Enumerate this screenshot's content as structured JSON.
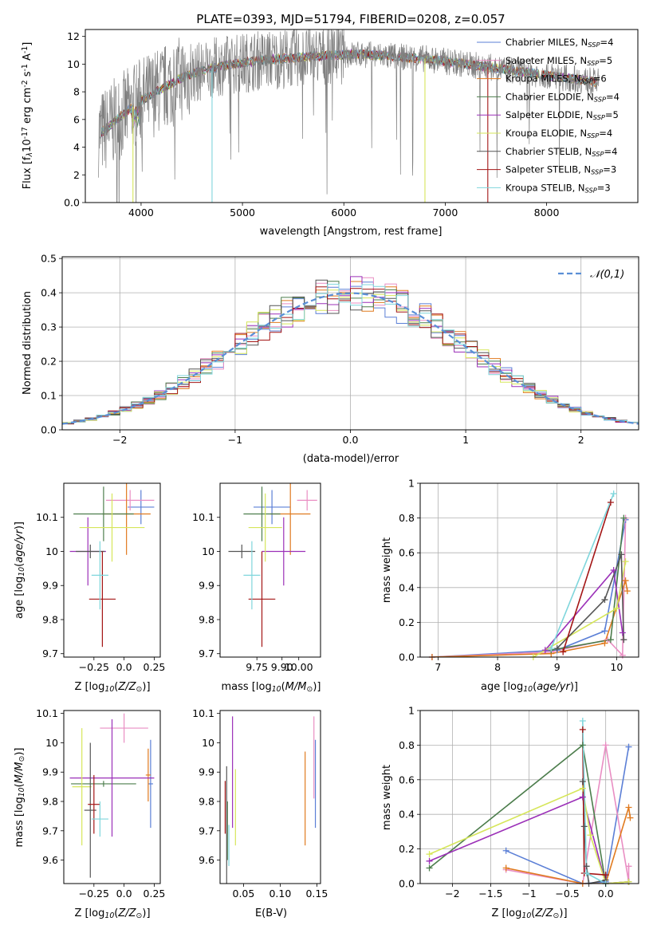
{
  "figure_title": "PLATE=0393, MJD=51794, FIBERID=0208, z=0.057",
  "colors": {
    "Chabrier MILES": "#5b7fd6",
    "Salpeter MILES": "#e98ec3",
    "Kroupa MILES": "#e07a1f",
    "Chabrier ELODIE": "#4c7d4c",
    "Salpeter ELODIE": "#9b30b8",
    "Kroupa ELODIE": "#d6e65a",
    "Chabrier STELIB": "#555555",
    "Salpeter STELIB": "#a31515",
    "Kroupa STELIB": "#7fd6dc",
    "data": "#808080",
    "normal": "#5a8fd6"
  },
  "chart_data": [
    {
      "id": "spectrum",
      "type": "line",
      "title": "PLATE=0393, MJD=51794, FIBERID=0208, z=0.057",
      "xlabel": "wavelength [Angstrom, rest frame]",
      "ylabel": "Flux [f$_\\lambda$10$^{-17}$ erg cm$^{-2}$ s$^{-1}$ A$^{-1}$]",
      "xlim": [
        3450,
        8900
      ],
      "ylim": [
        0,
        12.5
      ],
      "xticks": [
        4000,
        5000,
        6000,
        7000,
        8000
      ],
      "yticks": [
        0,
        2,
        4,
        6,
        8,
        10,
        12
      ],
      "legend_position": "top-right",
      "continuum": {
        "x": [
          3600,
          3700,
          3800,
          3900,
          4000,
          4100,
          4200,
          4300,
          4400,
          4500,
          4600,
          4800,
          5000,
          5200,
          5400,
          5600,
          5800,
          6000,
          6200,
          6400,
          6600,
          6800,
          7000,
          7200,
          7400,
          7600,
          7800,
          8000,
          8200,
          8400,
          8500
        ],
        "y": [
          5.0,
          5.6,
          6.2,
          6.8,
          7.4,
          7.8,
          8.2,
          8.6,
          9.0,
          9.3,
          9.5,
          9.9,
          10.1,
          10.3,
          10.4,
          10.5,
          10.6,
          10.7,
          10.7,
          10.6,
          10.5,
          10.4,
          10.2,
          10.0,
          9.8,
          9.6,
          9.4,
          9.2,
          9.0,
          8.8,
          8.7
        ]
      },
      "series": [
        {
          "name": "Chabrier MILES, N$_{SSP}$=4"
        },
        {
          "name": "Salpeter MILES, N$_{SSP}$=5"
        },
        {
          "name": "Kroupa MILES, N$_{SSP}$=6"
        },
        {
          "name": "Chabrier ELODIE, N$_{SSP}$=4"
        },
        {
          "name": "Salpeter ELODIE, N$_{SSP}$=5"
        },
        {
          "name": "Kroupa ELODIE, N$_{SSP}$=4"
        },
        {
          "name": "Chabrier STELIB, N$_{SSP}$=4"
        },
        {
          "name": "Salpeter STELIB, N$_{SSP}$=3"
        },
        {
          "name": "Kroupa STELIB, N$_{SSP}$=3"
        }
      ],
      "model_drops": [
        {
          "model": "Kroupa STELIB",
          "x": 4700
        },
        {
          "model": "Kroupa ELODIE",
          "x": 3920
        },
        {
          "model": "Kroupa ELODIE",
          "x": 6800
        },
        {
          "model": "Salpeter STELIB",
          "x": 7420
        }
      ]
    },
    {
      "id": "residuals",
      "type": "line",
      "xlabel": "(data-model)/error",
      "ylabel": "Normed distribution",
      "xlim": [
        -2.5,
        2.5
      ],
      "ylim": [
        0,
        0.505
      ],
      "xticks": [
        -2,
        -1,
        0,
        1,
        2
      ],
      "yticks": [
        0.0,
        0.1,
        0.2,
        0.3,
        0.4,
        0.5
      ],
      "grid": true,
      "legend_position": "top-right",
      "normal_label": "$\\mathcal{N}(0,1)$",
      "bin_width": 0.1
    },
    {
      "id": "age-vs-Z",
      "type": "scatter",
      "xlabel": "Z [log$_{10}$($Z/Z_\\odot$)]",
      "ylabel": "age  [log$_{10}$($age/yr$)]",
      "xlim": [
        -0.5,
        0.3
      ],
      "ylim": [
        9.69,
        10.2
      ],
      "xticks": [
        -0.25,
        0.0,
        0.25
      ],
      "yticks": [
        9.7,
        9.8,
        9.9,
        10.0,
        10.1
      ],
      "points": [
        {
          "model": "Chabrier MILES",
          "x": 0.14,
          "y": 10.13,
          "xerr": 0.11,
          "yerr": 0.05
        },
        {
          "model": "Salpeter MILES",
          "x": 0.05,
          "y": 10.15,
          "xerr": 0.2,
          "yerr": 0.03
        },
        {
          "model": "Kroupa MILES",
          "x": 0.02,
          "y": 10.11,
          "xerr": 0.2,
          "yerr": 0.12
        },
        {
          "model": "Chabrier ELODIE",
          "x": -0.17,
          "y": 10.11,
          "xerr": 0.25,
          "yerr": 0.08
        },
        {
          "model": "Salpeter ELODIE",
          "x": -0.3,
          "y": 10.0,
          "xerr": 0.15,
          "yerr": 0.1
        },
        {
          "model": "Kroupa ELODIE",
          "x": -0.1,
          "y": 10.07,
          "xerr": 0.27,
          "yerr": 0.1
        },
        {
          "model": "Chabrier STELIB",
          "x": -0.28,
          "y": 10.0,
          "xerr": 0.12,
          "yerr": 0.02
        },
        {
          "model": "Salpeter STELIB",
          "x": -0.18,
          "y": 9.86,
          "xerr": 0.11,
          "yerr": 0.14
        },
        {
          "model": "Kroupa STELIB",
          "x": -0.2,
          "y": 9.93,
          "xerr": 0.07,
          "yerr": 0.1
        }
      ]
    },
    {
      "id": "age-vs-mass",
      "type": "scatter",
      "xlabel": "mass [log$_{10}$($M/M_\\odot$)]",
      "ylabel": "",
      "xlim": [
        9.53,
        10.13
      ],
      "ylim": [
        9.69,
        10.2
      ],
      "xticks": [
        9.75,
        9.9,
        10.0
      ],
      "xticklabels": [
        "9.75",
        "9.90",
        "10.00"
      ],
      "yticks": [
        9.7,
        9.8,
        9.9,
        10.0,
        10.1
      ],
      "points": [
        {
          "model": "Chabrier MILES",
          "x": 9.84,
          "y": 10.13,
          "xerr": 0.11,
          "yerr": 0.05
        },
        {
          "model": "Salpeter MILES",
          "x": 10.05,
          "y": 10.15,
          "xerr": 0.06,
          "yerr": 0.03
        },
        {
          "model": "Kroupa MILES",
          "x": 9.95,
          "y": 10.11,
          "xerr": 0.12,
          "yerr": 0.12
        },
        {
          "model": "Chabrier ELODIE",
          "x": 9.78,
          "y": 10.11,
          "xerr": 0.11,
          "yerr": 0.08
        },
        {
          "model": "Salpeter ELODIE",
          "x": 9.91,
          "y": 10.0,
          "xerr": 0.13,
          "yerr": 0.1
        },
        {
          "model": "Kroupa ELODIE",
          "x": 9.8,
          "y": 10.07,
          "xerr": 0.1,
          "yerr": 0.1
        },
        {
          "model": "Chabrier STELIB",
          "x": 9.66,
          "y": 10.0,
          "xerr": 0.08,
          "yerr": 0.02
        },
        {
          "model": "Salpeter STELIB",
          "x": 9.78,
          "y": 9.86,
          "xerr": 0.08,
          "yerr": 0.14
        },
        {
          "model": "Kroupa STELIB",
          "x": 9.72,
          "y": 9.93,
          "xerr": 0.05,
          "yerr": 0.1
        }
      ]
    },
    {
      "id": "massweight-vs-age",
      "type": "line",
      "xlabel": "age  [log$_{10}$($age/yr$)]",
      "ylabel": "mass weight",
      "xlim": [
        6.7,
        10.37
      ],
      "ylim": [
        0,
        1.0
      ],
      "xticks": [
        7,
        8,
        9,
        10
      ],
      "yticks": [
        0.0,
        0.2,
        0.4,
        0.6,
        0.8,
        1.0
      ],
      "grid": true,
      "series": [
        {
          "model": "Chabrier MILES",
          "x": [
            6.9,
            9.0,
            9.8,
            10.15
          ],
          "y": [
            0.0,
            0.04,
            0.15,
            0.79
          ]
        },
        {
          "model": "Salpeter MILES",
          "x": [
            6.9,
            8.9,
            9.85,
            10.1,
            10.15
          ],
          "y": [
            0.0,
            0.03,
            0.1,
            0.01,
            0.8
          ]
        },
        {
          "model": "Kroupa MILES",
          "x": [
            6.9,
            8.9,
            9.8,
            10.15,
            10.18
          ],
          "y": [
            0.0,
            0.02,
            0.08,
            0.44,
            0.38
          ]
        },
        {
          "model": "Chabrier ELODIE",
          "x": [
            8.9,
            9.9,
            10.12
          ],
          "y": [
            0.04,
            0.1,
            0.8
          ]
        },
        {
          "model": "Salpeter ELODIE",
          "x": [
            8.8,
            9.95,
            10.1
          ],
          "y": [
            0.04,
            0.5,
            0.14
          ]
        },
        {
          "model": "Kroupa ELODIE",
          "x": [
            8.6,
            10.0,
            10.15
          ],
          "y": [
            0.0,
            0.28,
            0.55
          ]
        },
        {
          "model": "Chabrier STELIB",
          "x": [
            9.0,
            9.8,
            10.08,
            10.12
          ],
          "y": [
            0.05,
            0.33,
            0.59,
            0.1
          ]
        },
        {
          "model": "Salpeter STELIB",
          "x": [
            9.1,
            9.9
          ],
          "y": [
            0.03,
            0.89
          ]
        },
        {
          "model": "Kroupa STELIB",
          "x": [
            8.9,
            9.95
          ],
          "y": [
            0.05,
            0.94
          ]
        }
      ]
    },
    {
      "id": "mass-vs-Z",
      "type": "scatter",
      "xlabel": "Z [log$_{10}$($Z/Z_\\odot$)]",
      "ylabel": "mass [log$_{10}$($M/M_\\odot$)]",
      "xlim": [
        -0.5,
        0.3
      ],
      "ylim": [
        9.52,
        10.11
      ],
      "xticks": [
        -0.25,
        0.0,
        0.25
      ],
      "yticks": [
        9.6,
        9.7,
        9.8,
        9.9,
        10.0,
        10.1
      ],
      "points": [
        {
          "model": "Chabrier MILES",
          "x": 0.22,
          "y": 9.86,
          "xerr": 0.02,
          "yerr": 0.15
        },
        {
          "model": "Salpeter MILES",
          "x": 0.0,
          "y": 10.05,
          "xerr": 0.2,
          "yerr": 0.05
        },
        {
          "model": "Kroupa MILES",
          "x": 0.2,
          "y": 9.89,
          "xerr": 0.02,
          "yerr": 0.09
        },
        {
          "model": "Chabrier ELODIE",
          "x": -0.17,
          "y": 9.86,
          "xerr": 0.27,
          "yerr": 0.01
        },
        {
          "model": "Salpeter ELODIE",
          "x": -0.1,
          "y": 9.88,
          "xerr": 0.35,
          "yerr": 0.2
        },
        {
          "model": "Kroupa ELODIE",
          "x": -0.35,
          "y": 9.85,
          "xerr": 0.08,
          "yerr": 0.2
        },
        {
          "model": "Chabrier STELIB",
          "x": -0.28,
          "y": 9.77,
          "xerr": 0.05,
          "yerr": 0.23
        },
        {
          "model": "Salpeter STELIB",
          "x": -0.25,
          "y": 9.79,
          "xerr": 0.05,
          "yerr": 0.1
        },
        {
          "model": "Kroupa STELIB",
          "x": -0.2,
          "y": 9.74,
          "xerr": 0.07,
          "yerr": 0.06
        }
      ]
    },
    {
      "id": "mass-vs-ebv",
      "type": "scatter",
      "xlabel": "E(B-V)",
      "ylabel": "",
      "xlim": [
        0.018,
        0.155
      ],
      "ylim": [
        9.52,
        10.11
      ],
      "xticks": [
        0.05,
        0.1,
        0.15
      ],
      "xticklabels": [
        "0.05",
        "0.10",
        "0.15"
      ],
      "yticks": [
        9.6,
        9.7,
        9.8,
        9.9,
        10.0,
        10.1
      ],
      "points": [
        {
          "model": "Chabrier MILES",
          "x": 0.148,
          "y": 9.86,
          "yerr": 0.15
        },
        {
          "model": "Salpeter MILES",
          "x": 0.146,
          "y": 9.95,
          "yerr": 0.14
        },
        {
          "model": "Kroupa MILES",
          "x": 0.134,
          "y": 9.81,
          "yerr": 0.16
        },
        {
          "model": "Chabrier ELODIE",
          "x": 0.028,
          "y": 9.7,
          "yerr": 0.1
        },
        {
          "model": "Salpeter ELODIE",
          "x": 0.035,
          "y": 9.9,
          "yerr": 0.19
        },
        {
          "model": "Kroupa ELODIE",
          "x": 0.039,
          "y": 9.78,
          "yerr": 0.13
        },
        {
          "model": "Chabrier STELIB",
          "x": 0.027,
          "y": 9.72,
          "yerr": 0.2
        },
        {
          "model": "Salpeter STELIB",
          "x": 0.025,
          "y": 9.78,
          "yerr": 0.09
        },
        {
          "model": "Kroupa STELIB",
          "x": 0.03,
          "y": 9.65,
          "yerr": 0.07
        }
      ]
    },
    {
      "id": "massweight-vs-Z",
      "type": "line",
      "xlabel": "Z [log$_{10}$($Z/Z_\\odot$)]",
      "ylabel": "mass weight",
      "xlim": [
        -2.42,
        0.43
      ],
      "ylim": [
        0,
        1.0
      ],
      "xticks": [
        -2.0,
        -1.5,
        -1.0,
        -0.5,
        0.0
      ],
      "yticks": [
        0.0,
        0.2,
        0.4,
        0.6,
        0.8,
        1.0
      ],
      "grid": true,
      "series": [
        {
          "model": "Chabrier MILES",
          "x": [
            -1.3,
            -0.3,
            0.0,
            0.3
          ],
          "y": [
            0.19,
            0.0,
            0.01,
            0.79
          ]
        },
        {
          "model": "Salpeter MILES",
          "x": [
            -1.3,
            -0.3,
            0.0,
            0.3,
            0.3
          ],
          "y": [
            0.08,
            0.0,
            0.8,
            0.01,
            0.1
          ]
        },
        {
          "model": "Kroupa MILES",
          "x": [
            -1.3,
            -0.3,
            0.0,
            0.3,
            0.32
          ],
          "y": [
            0.09,
            0.0,
            0.0,
            0.44,
            0.38
          ]
        },
        {
          "model": "Chabrier ELODIE",
          "x": [
            -2.3,
            -0.3,
            0.0,
            0.3
          ],
          "y": [
            0.09,
            0.8,
            0.0,
            0.01
          ]
        },
        {
          "model": "Salpeter ELODIE",
          "x": [
            -2.3,
            -0.3,
            0.0,
            0.3
          ],
          "y": [
            0.13,
            0.5,
            0.0,
            0.01
          ]
        },
        {
          "model": "Kroupa ELODIE",
          "x": [
            -2.3,
            -0.3,
            -0.2,
            0.0,
            0.3
          ],
          "y": [
            0.17,
            0.55,
            0.28,
            0.0,
            0.01
          ]
        },
        {
          "model": "Chabrier STELIB",
          "x": [
            -0.3,
            -0.28,
            -0.25,
            -0.22,
            0.0
          ],
          "y": [
            0.59,
            0.33,
            0.1,
            0.0,
            0.02
          ]
        },
        {
          "model": "Salpeter STELIB",
          "x": [
            -0.3,
            -0.28,
            0.0
          ],
          "y": [
            0.89,
            0.06,
            0.05
          ]
        },
        {
          "model": "Kroupa STELIB",
          "x": [
            -0.3,
            -0.25,
            0.0
          ],
          "y": [
            0.94,
            0.06,
            0.0
          ]
        }
      ]
    }
  ]
}
